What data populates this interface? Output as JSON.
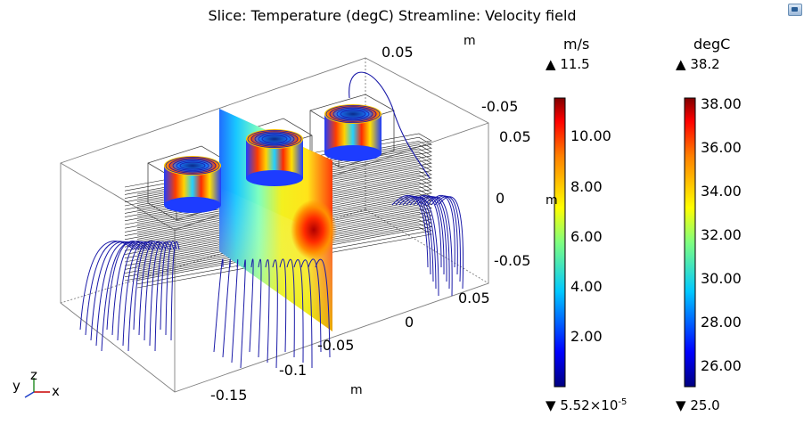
{
  "title": "Slice: Temperature (degC)  Streamline: Velocity field",
  "chart_data": {
    "type": "3d-slice-streamline",
    "title": "Slice: Temperature (degC)  Streamline: Velocity field",
    "axes": {
      "x": {
        "label": "m",
        "ticks": [
          "-0.15",
          "-0.1",
          "-0.05",
          "0",
          "0.05"
        ]
      },
      "y": {
        "label": "m",
        "ticks": [
          "0.05",
          "0",
          "-0.05"
        ]
      },
      "z": {
        "label": "m",
        "ticks": [
          "-0.05",
          "0.05",
          "0",
          "-0.05"
        ],
        "top_tick": "0.05"
      }
    },
    "colorbars": [
      {
        "name": "velocity",
        "unit": "m/s",
        "max_label": "11.5",
        "min_label": "5.52×10",
        "min_exponent": "-5",
        "ticks": [
          "10.00",
          "8.00",
          "6.00",
          "4.00",
          "2.00"
        ],
        "tick_values": [
          10,
          8,
          6,
          4,
          2
        ],
        "range": [
          5.52e-05,
          11.5
        ],
        "colormap": "rainbow"
      },
      {
        "name": "temperature",
        "unit": "degC",
        "max_label": "38.2",
        "min_label": "25.0",
        "ticks": [
          "38.00",
          "36.00",
          "34.00",
          "32.00",
          "30.00",
          "28.00",
          "26.00"
        ],
        "tick_values": [
          38,
          36,
          34,
          32,
          30,
          28,
          26
        ],
        "range": [
          25.0,
          38.2
        ],
        "colormap": "rainbow"
      }
    ]
  },
  "triad": {
    "x": "x",
    "y": "y",
    "z": "z"
  },
  "colors": {
    "streamline": "#1a1aa8",
    "box_edge": "#333333",
    "fin": "#222222"
  },
  "icons": {
    "corner": "window-restore-icon",
    "max_marker": "triangle-up-icon",
    "min_marker": "triangle-down-icon"
  }
}
